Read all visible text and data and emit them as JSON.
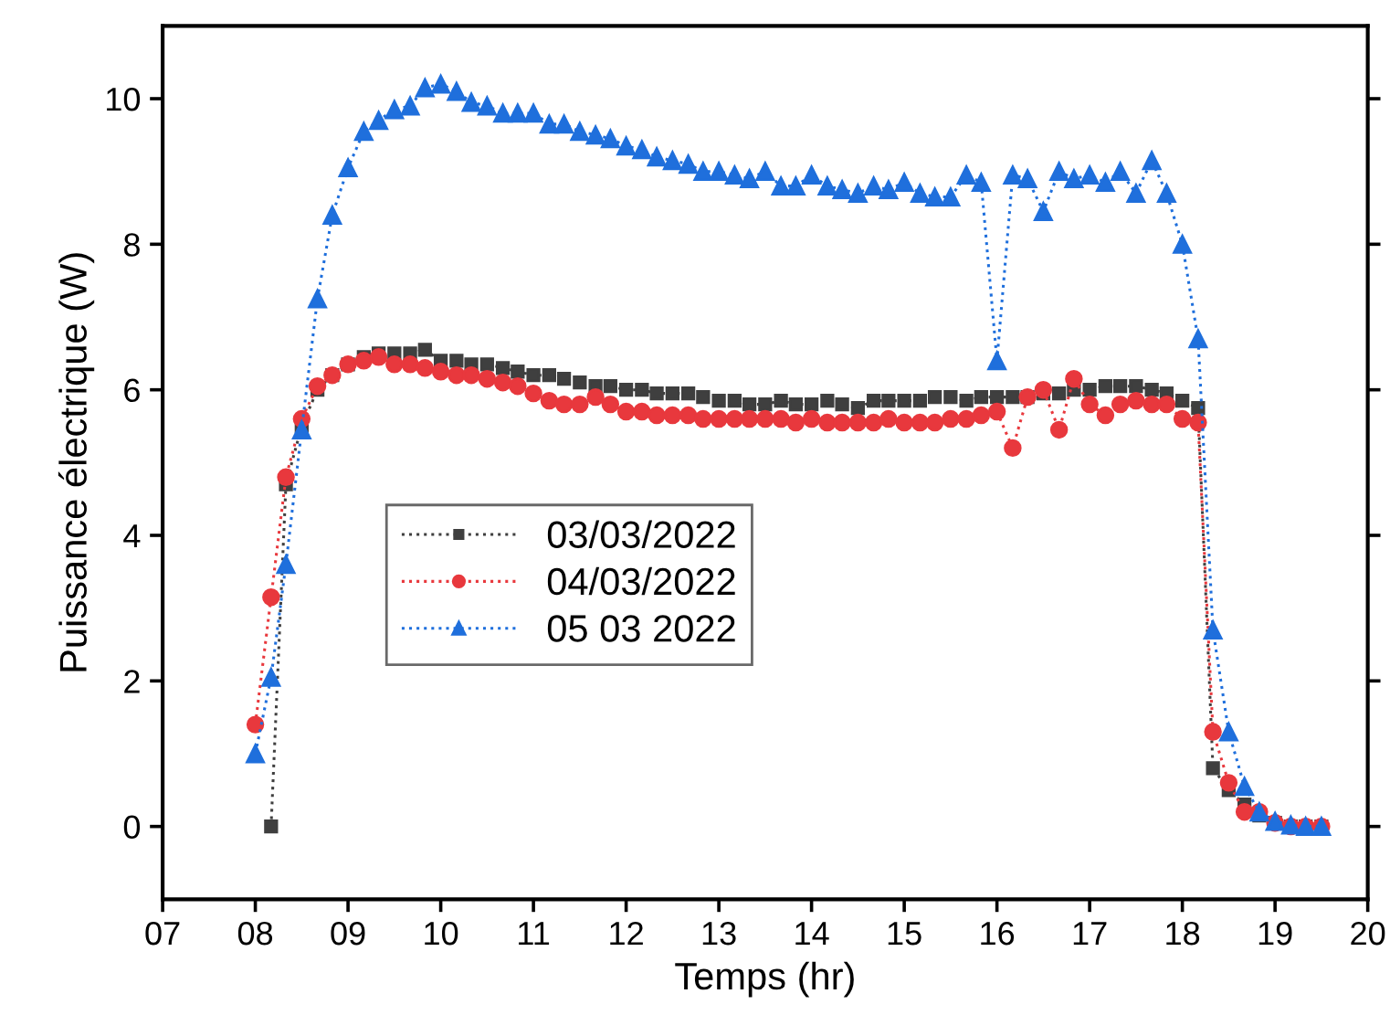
{
  "chart_data": {
    "type": "line",
    "xlabel": "Temps (hr)",
    "ylabel": "Puissance électrique (W)",
    "x": [
      8,
      8.17,
      8.33,
      8.5,
      8.67,
      8.83,
      9,
      9.17,
      9.33,
      9.5,
      9.67,
      9.83,
      10,
      10.17,
      10.33,
      10.5,
      10.67,
      10.83,
      11,
      11.17,
      11.33,
      11.5,
      11.67,
      11.83,
      12,
      12.17,
      12.33,
      12.5,
      12.67,
      12.83,
      13,
      13.17,
      13.33,
      13.5,
      13.67,
      13.83,
      14,
      14.17,
      14.33,
      14.5,
      14.67,
      14.83,
      15,
      15.17,
      15.33,
      15.5,
      15.67,
      15.83,
      16,
      16.17,
      16.33,
      16.5,
      16.67,
      16.83,
      17,
      17.17,
      17.33,
      17.5,
      17.67,
      17.83,
      18,
      18.17,
      18.33,
      18.5,
      18.67,
      18.83,
      19,
      19.17,
      19.33,
      19.5
    ],
    "series": [
      {
        "name": "03/03/2022",
        "color": "#3f3f3f",
        "marker": "square",
        "values": [
          null,
          0,
          4.7,
          5.5,
          6.0,
          6.2,
          6.35,
          6.45,
          6.5,
          6.5,
          6.5,
          6.55,
          6.4,
          6.4,
          6.35,
          6.35,
          6.3,
          6.25,
          6.2,
          6.2,
          6.15,
          6.1,
          6.05,
          6.05,
          6.0,
          6.0,
          5.95,
          5.95,
          5.95,
          5.9,
          5.85,
          5.85,
          5.8,
          5.8,
          5.85,
          5.8,
          5.8,
          5.85,
          5.8,
          5.75,
          5.85,
          5.85,
          5.85,
          5.85,
          5.9,
          5.9,
          5.85,
          5.9,
          5.9,
          5.9,
          5.9,
          5.95,
          5.95,
          6.0,
          6.0,
          6.05,
          6.05,
          6.05,
          6.0,
          5.95,
          5.85,
          5.75,
          0.8,
          0.5,
          0.3,
          0.15,
          0.05,
          0,
          0,
          0
        ]
      },
      {
        "name": "04/03/2022",
        "color": "#e8383d",
        "marker": "circle",
        "values": [
          1.4,
          3.15,
          4.8,
          5.6,
          6.05,
          6.2,
          6.35,
          6.4,
          6.45,
          6.35,
          6.35,
          6.3,
          6.25,
          6.2,
          6.2,
          6.15,
          6.1,
          6.05,
          5.95,
          5.85,
          5.8,
          5.8,
          5.9,
          5.8,
          5.7,
          5.7,
          5.65,
          5.65,
          5.65,
          5.6,
          5.6,
          5.6,
          5.6,
          5.6,
          5.6,
          5.55,
          5.6,
          5.55,
          5.55,
          5.55,
          5.55,
          5.6,
          5.55,
          5.55,
          5.55,
          5.6,
          5.6,
          5.65,
          5.7,
          5.2,
          5.9,
          6.0,
          5.45,
          6.15,
          5.8,
          5.65,
          5.8,
          5.85,
          5.8,
          5.8,
          5.6,
          5.55,
          1.3,
          0.6,
          0.2,
          0.2,
          0.05,
          0,
          0,
          0
        ]
      },
      {
        "name": "05 03 2022",
        "color": "#1f6fdc",
        "marker": "triangle",
        "values": [
          1.0,
          2.05,
          3.6,
          5.45,
          7.25,
          8.4,
          9.05,
          9.55,
          9.7,
          9.85,
          9.9,
          10.15,
          10.2,
          10.1,
          9.95,
          9.9,
          9.8,
          9.8,
          9.8,
          9.65,
          9.65,
          9.55,
          9.5,
          9.45,
          9.35,
          9.3,
          9.2,
          9.15,
          9.1,
          9.0,
          9.0,
          8.95,
          8.9,
          9.0,
          8.8,
          8.8,
          8.95,
          8.8,
          8.75,
          8.7,
          8.8,
          8.75,
          8.85,
          8.7,
          8.65,
          8.65,
          8.95,
          8.85,
          6.4,
          8.95,
          8.9,
          8.45,
          9.0,
          8.9,
          8.95,
          8.85,
          9.0,
          8.7,
          9.15,
          8.7,
          8.0,
          6.7,
          2.7,
          1.3,
          0.55,
          0.2,
          0.07,
          0.02,
          0,
          0
        ]
      }
    ],
    "xlim": [
      7,
      20
    ],
    "xticks": [
      {
        "value": 7,
        "label": "07"
      },
      {
        "value": 8,
        "label": "08"
      },
      {
        "value": 9,
        "label": "09"
      },
      10,
      11,
      12,
      13,
      14,
      15,
      16,
      17,
      18,
      19,
      20
    ],
    "ylim": [
      -1,
      11
    ],
    "yticks": [
      0,
      2,
      4,
      6,
      8,
      10
    ],
    "line_style": "dotted",
    "grid": false,
    "legend": "center left"
  }
}
